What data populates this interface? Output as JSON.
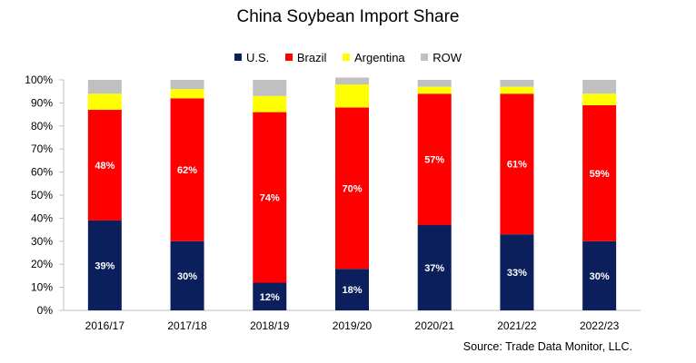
{
  "chart_data": {
    "type": "bar",
    "stacked": true,
    "title": "China Soybean Import Share",
    "source": "Source: Trade Data Monitor, LLC.",
    "categories": [
      "2016/17",
      "2017/18",
      "2018/19",
      "2019/20",
      "2020/21",
      "2021/22",
      "2022/23"
    ],
    "ylim": [
      0,
      100
    ],
    "yticks": [
      "0%",
      "10%",
      "20%",
      "30%",
      "40%",
      "50%",
      "60%",
      "70%",
      "80%",
      "90%",
      "100%"
    ],
    "grid": false,
    "legend_position": "top",
    "series": [
      {
        "name": "U.S.",
        "color": "#0a1f5c",
        "values": [
          39,
          30,
          12,
          18,
          37,
          33,
          30
        ],
        "labels": [
          "39%",
          "30%",
          "12%",
          "18%",
          "37%",
          "33%",
          "30%"
        ],
        "label_color": "#ffffff"
      },
      {
        "name": "Brazil",
        "color": "#ff0000",
        "values": [
          48,
          62,
          74,
          70,
          57,
          61,
          59
        ],
        "labels": [
          "48%",
          "62%",
          "74%",
          "70%",
          "57%",
          "61%",
          "59%"
        ],
        "label_color": "#ffffff"
      },
      {
        "name": "Argentina",
        "color": "#ffff00",
        "values": [
          7,
          4,
          7,
          10,
          3,
          3,
          5
        ],
        "labels": [],
        "label_color": ""
      },
      {
        "name": "ROW",
        "color": "#c0c0c0",
        "values": [
          6,
          4,
          7,
          3,
          3,
          3,
          6
        ],
        "labels": [],
        "label_color": ""
      }
    ]
  }
}
